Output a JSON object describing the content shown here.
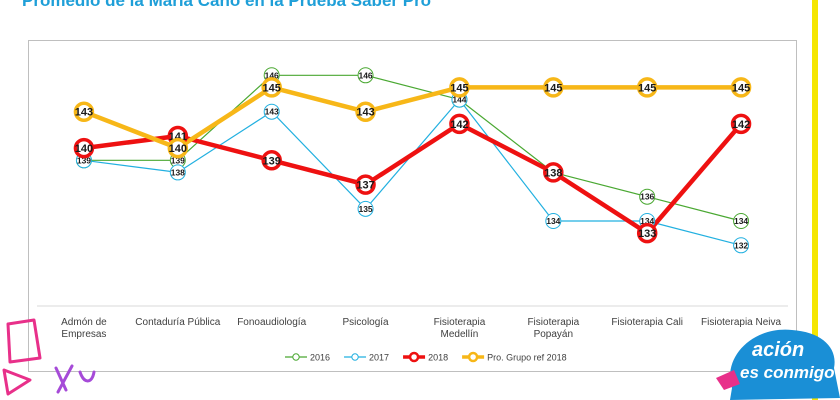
{
  "slide": {
    "title": "Promedio de la María Cano en la Prueba Saber Pro",
    "stripe_color": "#f5e600"
  },
  "logo": {
    "text_line1": "ación",
    "text_line2": "es conmigo"
  },
  "chart_data": {
    "type": "line",
    "categories": [
      [
        "Admón de",
        "Empresas"
      ],
      [
        "Contaduría Pública"
      ],
      [
        "Fonoaudiología"
      ],
      [
        "Psicología"
      ],
      [
        "Fisioterapia",
        "Medellín"
      ],
      [
        "Fisioterapia",
        "Popayán"
      ],
      [
        "Fisioterapia Cali"
      ],
      [
        "Fisioterapia Neiva"
      ]
    ],
    "series": [
      {
        "name": "2016",
        "color": "#4aa832",
        "values": [
          139,
          139,
          146,
          146,
          144,
          138,
          136,
          134
        ],
        "marker": "small"
      },
      {
        "name": "2017",
        "color": "#22b0e0",
        "values": [
          139,
          138,
          143,
          135,
          144,
          134,
          134,
          132
        ],
        "marker": "small"
      },
      {
        "name": "2018",
        "color": "#ee1111",
        "values": [
          140,
          141,
          139,
          137,
          142,
          138,
          133,
          142
        ],
        "marker": "large"
      },
      {
        "name": "Pro. Grupo ref 2018",
        "color": "#f7b718",
        "values": [
          143,
          140,
          145,
          143,
          145,
          145,
          145,
          145
        ],
        "marker": "large"
      }
    ],
    "ylim": [
      127,
      148
    ],
    "grid": false,
    "legend_position": "bottom"
  }
}
